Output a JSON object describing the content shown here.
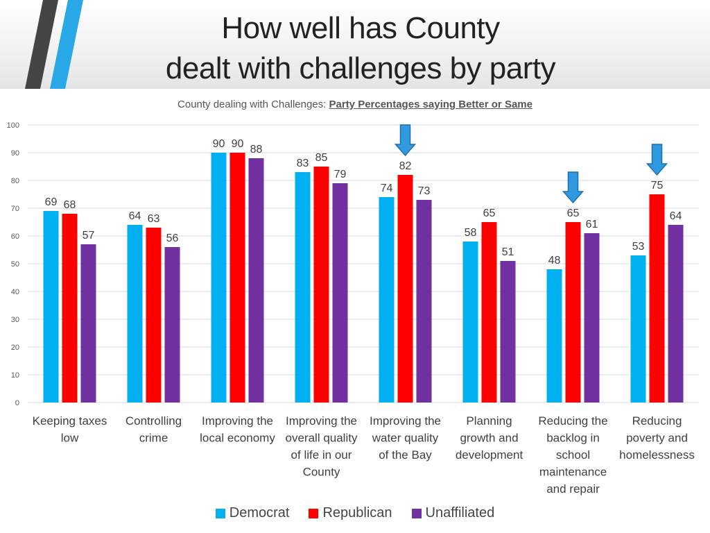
{
  "title_line1": "How well has County",
  "title_line2": "dealt with challenges by party",
  "subtitle_prefix": "County dealing with Challenges:",
  "subtitle_emphasis": "Party Percentages saying Better or Same",
  "colors": {
    "deco_dark": "#454545",
    "deco_blue": "#29a8e8",
    "arrow": "#2f9ae0"
  },
  "chart_data": {
    "type": "bar",
    "title": "County dealing with Challenges: Party Percentages saying Better or Same",
    "xlabel": "",
    "ylabel": "",
    "ylim": [
      0,
      100
    ],
    "yticks": [
      0,
      10,
      20,
      30,
      40,
      50,
      60,
      70,
      80,
      90,
      100
    ],
    "grid": true,
    "legend_position": "bottom",
    "categories": [
      [
        "Keeping taxes",
        "low"
      ],
      [
        "Controlling",
        "crime"
      ],
      [
        "Improving the",
        "local economy"
      ],
      [
        "Improving the",
        "overall quality",
        "of life in our",
        "County"
      ],
      [
        "Improving the",
        "water quality",
        "of the Bay"
      ],
      [
        "Planning",
        "growth and",
        "development"
      ],
      [
        "Reducing the",
        "backlog in",
        "school",
        "maintenance",
        "and repair"
      ],
      [
        "Reducing",
        "poverty and",
        "homelessness"
      ]
    ],
    "series": [
      {
        "name": "Democrat",
        "color": "#00b0f0",
        "values": [
          69,
          64,
          90,
          83,
          74,
          58,
          48,
          53
        ]
      },
      {
        "name": "Republican",
        "color": "#ff0000",
        "values": [
          68,
          63,
          90,
          85,
          82,
          65,
          65,
          75
        ]
      },
      {
        "name": "Unaffiliated",
        "color": "#7030a0",
        "values": [
          57,
          56,
          88,
          79,
          73,
          51,
          61,
          64
        ]
      }
    ],
    "highlight_arrows": [
      {
        "category_index": 4,
        "series": "Republican"
      },
      {
        "category_index": 6,
        "series": "Republican"
      },
      {
        "category_index": 7,
        "series": "Republican"
      }
    ]
  }
}
